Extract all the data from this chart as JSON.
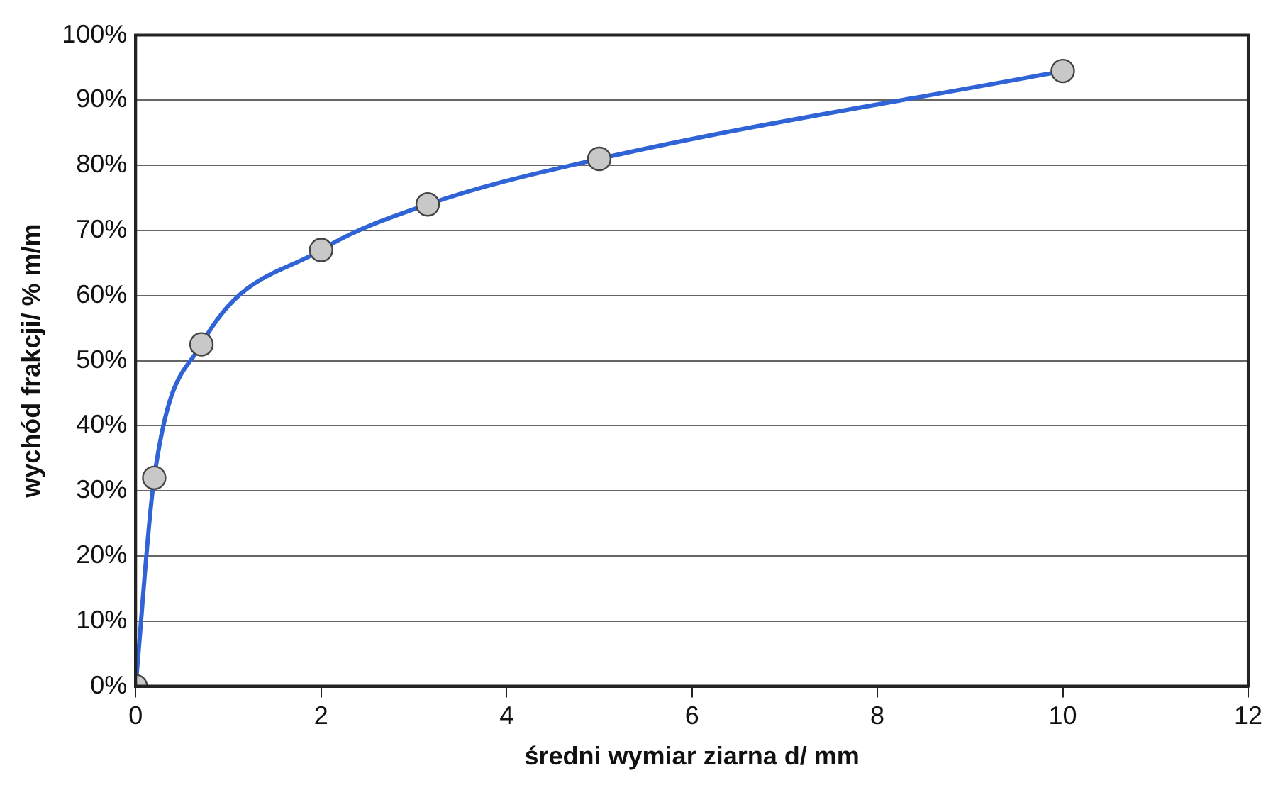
{
  "chart_data": {
    "type": "line",
    "xlabel": "średni wymiar ziarna d/ mm",
    "ylabel": "wychód frakcji/ % m/m",
    "x": [
      0,
      0.2,
      0.71,
      2,
      3.15,
      5,
      10
    ],
    "series": [
      {
        "color": "#2f63d6",
        "values": [
          0,
          32,
          52.5,
          67,
          74,
          81,
          94.5
        ]
      }
    ],
    "xlim": [
      0,
      12
    ],
    "xticks": [
      0,
      2,
      4,
      6,
      8,
      10,
      12
    ],
    "ylim": [
      0,
      100
    ],
    "yticks": [
      {
        "value": 0,
        "label": "0%"
      },
      {
        "value": 10,
        "label": "10%"
      },
      {
        "value": 20,
        "label": "20%"
      },
      {
        "value": 30,
        "label": "30%"
      },
      {
        "value": 40,
        "label": "40%"
      },
      {
        "value": 50,
        "label": "50%"
      },
      {
        "value": 60,
        "label": "60%"
      },
      {
        "value": 70,
        "label": "70%"
      },
      {
        "value": 80,
        "label": "80%"
      },
      {
        "value": 90,
        "label": "90%"
      },
      {
        "value": 100,
        "label": "100%"
      }
    ],
    "grid": "y",
    "marker": "circle",
    "line_style": "solid",
    "legend": false
  }
}
